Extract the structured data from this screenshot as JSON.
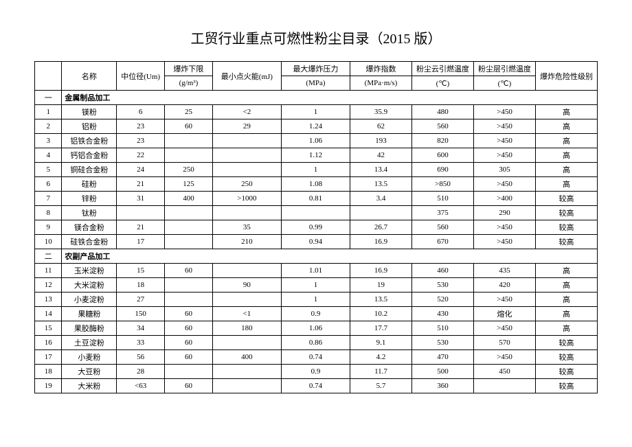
{
  "title": "工贸行业重点可燃性粉尘目录（2015 版）",
  "headers": {
    "idx": "",
    "name": "名称",
    "um": "中位径(Um)",
    "gm3_top": "爆炸下限",
    "gm3_bot": "(g/m³)",
    "mj": "最小点火能(mJ)",
    "mpa_top": "最大爆炸压力",
    "mpa_bot": "(MPa)",
    "mpams_top": "爆炸指数",
    "mpams_bot": "(MPa·m/s)",
    "cloud_top": "粉尘云引燃温度",
    "cloud_bot": "(℃)",
    "layer_top": "粉尘层引燃温度",
    "layer_bot": "(℃)",
    "level": "爆炸危险性级别"
  },
  "sections": [
    {
      "marker": "一",
      "label": "金属制品加工",
      "rows": [
        {
          "idx": "1",
          "name": "镁粉",
          "um": "6",
          "gm3": "25",
          "mj": "<2",
          "mpa": "1",
          "mpams": "35.9",
          "cloud": "480",
          "layer": ">450",
          "level": "高"
        },
        {
          "idx": "2",
          "name": "铝粉",
          "um": "23",
          "gm3": "60",
          "mj": "29",
          "mpa": "1.24",
          "mpams": "62",
          "cloud": "560",
          "layer": ">450",
          "level": "高"
        },
        {
          "idx": "3",
          "name": "铝铁合金粉",
          "um": "23",
          "gm3": "",
          "mj": "",
          "mpa": "1.06",
          "mpams": "193",
          "cloud": "820",
          "layer": ">450",
          "level": "高"
        },
        {
          "idx": "4",
          "name": "钙铝合金粉",
          "um": "22",
          "gm3": "",
          "mj": "",
          "mpa": "1.12",
          "mpams": "42",
          "cloud": "600",
          "layer": ">450",
          "level": "高"
        },
        {
          "idx": "5",
          "name": "铜硅合金粉",
          "um": "24",
          "gm3": "250",
          "mj": "",
          "mpa": "1",
          "mpams": "13.4",
          "cloud": "690",
          "layer": "305",
          "level": "高"
        },
        {
          "idx": "6",
          "name": "硅粉",
          "um": "21",
          "gm3": "125",
          "mj": "250",
          "mpa": "1.08",
          "mpams": "13.5",
          "cloud": ">850",
          "layer": ">450",
          "level": "高"
        },
        {
          "idx": "7",
          "name": "锌粉",
          "um": "31",
          "gm3": "400",
          "mj": ">1000",
          "mpa": "0.81",
          "mpams": "3.4",
          "cloud": "510",
          "layer": ">400",
          "level": "较高"
        },
        {
          "idx": "8",
          "name": "钛粉",
          "um": "",
          "gm3": "",
          "mj": "",
          "mpa": "",
          "mpams": "",
          "cloud": "375",
          "layer": "290",
          "level": "较高"
        },
        {
          "idx": "9",
          "name": "镁合金粉",
          "um": "21",
          "gm3": "",
          "mj": "35",
          "mpa": "0.99",
          "mpams": "26.7",
          "cloud": "560",
          "layer": ">450",
          "level": "较高"
        },
        {
          "idx": "10",
          "name": "硅铁合金粉",
          "um": "17",
          "gm3": "",
          "mj": "210",
          "mpa": "0.94",
          "mpams": "16.9",
          "cloud": "670",
          "layer": ">450",
          "level": "较高"
        }
      ]
    },
    {
      "marker": "二",
      "label": "农副产品加工",
      "rows": [
        {
          "idx": "11",
          "name": "玉米淀粉",
          "um": "15",
          "gm3": "60",
          "mj": "",
          "mpa": "1.01",
          "mpams": "16.9",
          "cloud": "460",
          "layer": "435",
          "level": "高"
        },
        {
          "idx": "12",
          "name": "大米淀粉",
          "um": "18",
          "gm3": "",
          "mj": "90",
          "mpa": "1",
          "mpams": "19",
          "cloud": "530",
          "layer": "420",
          "level": "高"
        },
        {
          "idx": "13",
          "name": "小麦淀粉",
          "um": "27",
          "gm3": "",
          "mj": "",
          "mpa": "1",
          "mpams": "13.5",
          "cloud": "520",
          "layer": ">450",
          "level": "高"
        },
        {
          "idx": "14",
          "name": "果糖粉",
          "um": "150",
          "gm3": "60",
          "mj": "<1",
          "mpa": "0.9",
          "mpams": "10.2",
          "cloud": "430",
          "layer": "熔化",
          "level": "高"
        },
        {
          "idx": "15",
          "name": "果胶酶粉",
          "um": "34",
          "gm3": "60",
          "mj": "180",
          "mpa": "1.06",
          "mpams": "17.7",
          "cloud": "510",
          "layer": ">450",
          "level": "高"
        },
        {
          "idx": "16",
          "name": "土豆淀粉",
          "um": "33",
          "gm3": "60",
          "mj": "",
          "mpa": "0.86",
          "mpams": "9.1",
          "cloud": "530",
          "layer": "570",
          "level": "较高"
        },
        {
          "idx": "17",
          "name": "小麦粉",
          "um": "56",
          "gm3": "60",
          "mj": "400",
          "mpa": "0.74",
          "mpams": "4.2",
          "cloud": "470",
          "layer": ">450",
          "level": "较高"
        },
        {
          "idx": "18",
          "name": "大豆粉",
          "um": "28",
          "gm3": "",
          "mj": "",
          "mpa": "0.9",
          "mpams": "11.7",
          "cloud": "500",
          "layer": "450",
          "level": "较高"
        },
        {
          "idx": "19",
          "name": "大米粉",
          "um": "<63",
          "gm3": "60",
          "mj": "",
          "mpa": "0.74",
          "mpams": "5.7",
          "cloud": "360",
          "layer": "",
          "level": "较高"
        }
      ]
    }
  ]
}
